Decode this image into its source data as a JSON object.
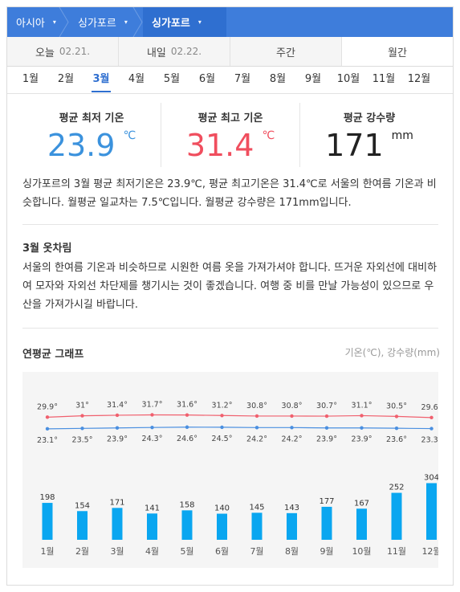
{
  "breadcrumb": {
    "items": [
      {
        "label": "아시아"
      },
      {
        "label": "싱가포르"
      },
      {
        "label": "싱가포르"
      }
    ],
    "arrow": "▾"
  },
  "day_tabs": [
    {
      "label": "오늘",
      "date": "02.21."
    },
    {
      "label": "내일",
      "date": "02.22."
    },
    {
      "label": "주간",
      "date": ""
    },
    {
      "label": "월간",
      "date": ""
    }
  ],
  "active_day_tab": 3,
  "months": [
    "1월",
    "2월",
    "3월",
    "4월",
    "5월",
    "6월",
    "7월",
    "8월",
    "9월",
    "10월",
    "11월",
    "12월"
  ],
  "active_month": 2,
  "stats": {
    "min": {
      "label": "평균 최저 기온",
      "value": "23.9",
      "unit": "℃",
      "color": "#3b92dd"
    },
    "max": {
      "label": "평균 최고 기온",
      "value": "31.4",
      "unit": "℃",
      "color": "#f04e5e"
    },
    "rain": {
      "label": "평균 강수량",
      "value": "171",
      "unit": "mm",
      "color": "#222222"
    }
  },
  "description": "싱가포르의 3월 평균 최저기온은 23.9℃, 평균 최고기온은 31.4℃로 서울의 한여름 기온과 비슷합니다. 월평균 일교차는 7.5℃입니다. 월평균 강수량은 171mm입니다.",
  "clothes": {
    "title": "3월 옷차림",
    "text": "서울의 한여름 기온과 비슷하므로 시원한 여름 옷을 가져가셔야 합니다. 뜨거운 자외선에 대비하여 모자와 자외선 차단제를 챙기시는 것이 좋겠습니다. 여행 중 비를 만날 가능성이 있으므로 우산을 가져가시길 바랍니다."
  },
  "graph": {
    "title": "연평균 그래프",
    "legend": "기온(℃), 강수량(mm)"
  },
  "chart_data": {
    "type": "line+bar",
    "categories": [
      "1월",
      "2월",
      "3월",
      "4월",
      "5월",
      "6월",
      "7월",
      "8월",
      "9월",
      "10월",
      "11월",
      "12월"
    ],
    "series": [
      {
        "name": "최고 기온",
        "unit": "°",
        "values": [
          29.9,
          31,
          31.4,
          31.7,
          31.6,
          31.2,
          30.8,
          30.8,
          30.7,
          31.1,
          30.5,
          29.6
        ],
        "color": "#f0606e"
      },
      {
        "name": "최저 기온",
        "unit": "°",
        "values": [
          23.1,
          23.5,
          23.9,
          24.3,
          24.6,
          24.5,
          24.2,
          24.2,
          23.9,
          23.9,
          23.6,
          23.3
        ],
        "color": "#4a8fe0"
      },
      {
        "name": "강수량",
        "values": [
          198,
          154,
          171,
          141,
          158,
          140,
          145,
          143,
          177,
          167,
          252,
          304
        ],
        "color": "#0aa6f0"
      }
    ],
    "max_labels": [
      "29.9°",
      "31°",
      "31.4°",
      "31.7°",
      "31.6°",
      "31.2°",
      "30.8°",
      "30.8°",
      "30.7°",
      "31.1°",
      "30.5°",
      "29.6°"
    ],
    "min_labels": [
      "23.1°",
      "23.5°",
      "23.9°",
      "24.3°",
      "24.6°",
      "24.5°",
      "24.2°",
      "24.2°",
      "23.9°",
      "23.9°",
      "23.6°",
      "23.3°"
    ]
  }
}
